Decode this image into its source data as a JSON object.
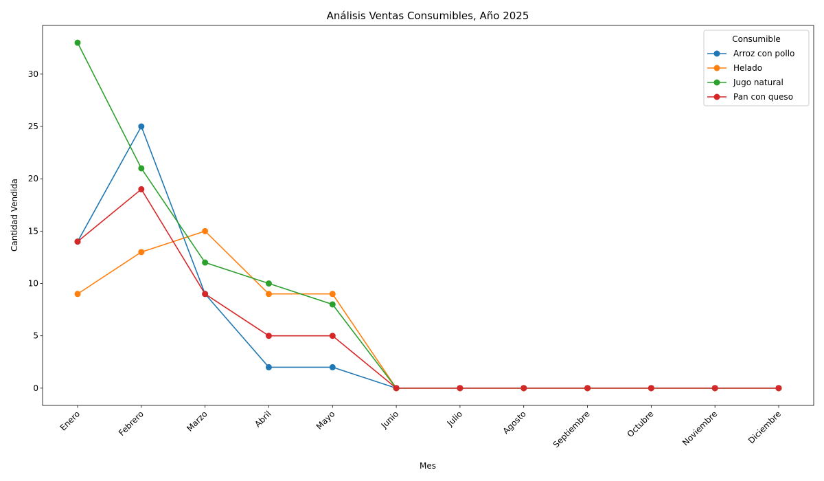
{
  "chart_data": {
    "type": "line",
    "title": "Análisis Ventas Consumibles, Año 2025",
    "xlabel": "Mes",
    "ylabel": "Cantidad Vendida",
    "categories": [
      "Enero",
      "Febrero",
      "Marzo",
      "Abril",
      "Mayo",
      "Junio",
      "Julio",
      "Agosto",
      "Septiembre",
      "Octubre",
      "Noviembre",
      "Diciembre"
    ],
    "ylim": [
      -1.65,
      34.65
    ],
    "yticks": [
      0,
      5,
      10,
      15,
      20,
      25,
      30
    ],
    "grid": false,
    "legend": {
      "title": "Consumible",
      "placement": "top-right"
    },
    "series": [
      {
        "name": "Arroz con pollo",
        "color": "#1f77b4",
        "values": [
          14,
          25,
          9,
          2,
          2,
          0,
          0,
          0,
          0,
          0,
          0,
          0
        ]
      },
      {
        "name": "Helado",
        "color": "#ff7f0e",
        "values": [
          9,
          13,
          15,
          9,
          9,
          0,
          0,
          0,
          0,
          0,
          0,
          0
        ]
      },
      {
        "name": "Jugo natural",
        "color": "#2ca02c",
        "values": [
          33,
          21,
          12,
          10,
          8,
          0,
          0,
          0,
          0,
          0,
          0,
          0
        ]
      },
      {
        "name": "Pan con queso",
        "color": "#d62728",
        "values": [
          14,
          19,
          9,
          5,
          5,
          0,
          0,
          0,
          0,
          0,
          0,
          0
        ]
      }
    ]
  }
}
